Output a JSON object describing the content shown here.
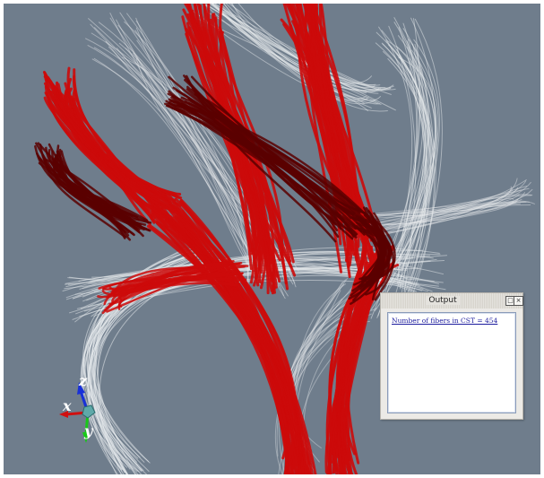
{
  "scene": {
    "background_color": "#6f7d8c",
    "fiber_colors": {
      "highlight": "#cc0a0a",
      "dark": "#5a0000",
      "context": "#e6e9ec"
    }
  },
  "orientation_axes": {
    "x_label": "x",
    "y_label": "y",
    "z_label": "z",
    "x_color": "#d01010",
    "y_color": "#18c818",
    "z_color": "#1830d8"
  },
  "output_panel": {
    "title": "Output",
    "float_icon": "float-window-icon",
    "close_icon": "close-icon",
    "message": "Number of fibers in CST = 454"
  }
}
